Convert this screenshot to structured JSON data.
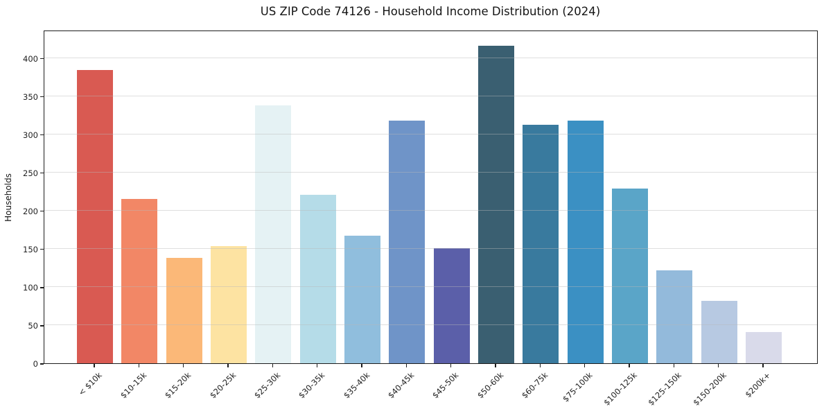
{
  "title": "US ZIP Code 74126 - Household Income Distribution (2024)",
  "chart_data": {
    "type": "bar",
    "title": "US ZIP Code 74126 - Household Income Distribution (2024)",
    "xlabel": "",
    "ylabel": "Households",
    "categories": [
      "< $10k",
      "$10-15k",
      "$15-20k",
      "$20-25k",
      "$25-30k",
      "$30-35k",
      "$35-40k",
      "$40-45k",
      "$45-50k",
      "$50-60k",
      "$60-75k",
      "$75-100k",
      "$100-125k",
      "$125-150k",
      "$150-200k",
      "$200k+"
    ],
    "values": [
      384,
      215,
      138,
      154,
      338,
      221,
      167,
      318,
      151,
      416,
      313,
      318,
      229,
      122,
      82,
      41
    ],
    "bar_colors": [
      "#d95a52",
      "#f28766",
      "#fbb878",
      "#fde3a2",
      "#e5f2f4",
      "#b5dce8",
      "#90bedd",
      "#6f94c8",
      "#5b5fa9",
      "#3a5f71",
      "#397a9e",
      "#3b90c3",
      "#5aa5c8",
      "#93badb",
      "#b7c9e2",
      "#d9daea"
    ],
    "yticks": [
      0,
      50,
      100,
      150,
      200,
      250,
      300,
      350,
      400
    ],
    "ylim": [
      0,
      437
    ],
    "grid": "horizontal-only",
    "gridline_color": "#e3e3e3",
    "legend": "none",
    "x_tick_rotation_deg": 45,
    "background_color": "#ffffff"
  }
}
